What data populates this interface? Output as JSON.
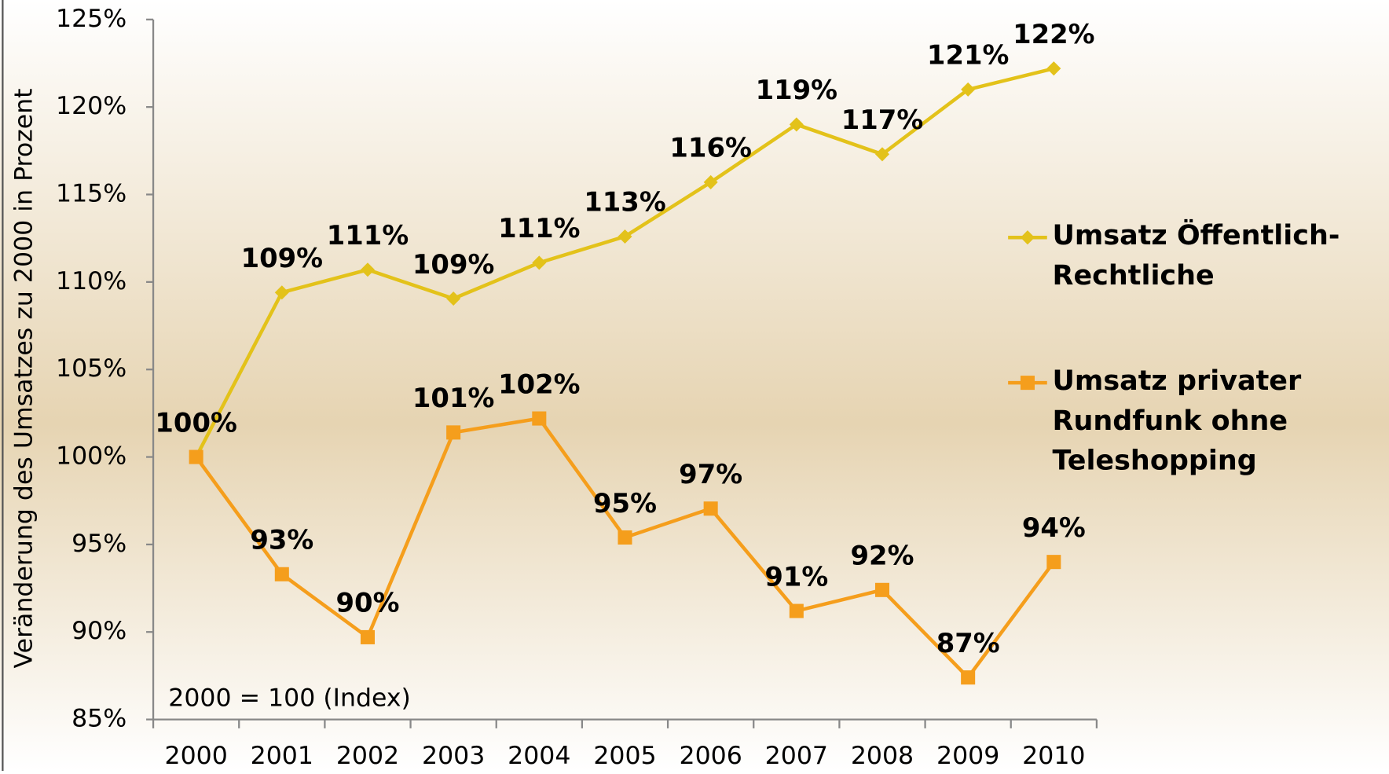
{
  "chart_data": {
    "type": "line",
    "y_axis_label": "Veränderung des Umsatzes zu 2000 in Prozent",
    "annotation": "2000 = 100 (Index)",
    "categories": [
      "2000",
      "2001",
      "2002",
      "2003",
      "2004",
      "2005",
      "2006",
      "2007",
      "2008",
      "2009",
      "2010"
    ],
    "series": [
      {
        "name": "Umsatz Öffentlich-Rechtliche",
        "color": "#e3c21a",
        "marker": "diamond",
        "values": [
          100,
          109.4,
          110.7,
          109.05,
          111.1,
          112.6,
          115.7,
          119.0,
          117.3,
          121.0,
          122.2
        ],
        "value_labels": [
          null,
          "109%",
          "111%",
          "109%",
          "111%",
          "113%",
          "116%",
          "119%",
          "117%",
          "121%",
          "122%"
        ]
      },
      {
        "name": "Umsatz privater Rundfunk ohne Teleshopping",
        "color": "#f59e1c",
        "marker": "square",
        "values": [
          100,
          93.3,
          89.7,
          101.4,
          102.2,
          95.4,
          97.05,
          91.2,
          92.4,
          87.4,
          94.0
        ],
        "value_labels": [
          "100%",
          "93%",
          "90%",
          "101%",
          "102%",
          "95%",
          "97%",
          "91%",
          "92%",
          "87%",
          "94%"
        ]
      }
    ],
    "ylim": [
      85,
      125
    ],
    "yticks": [
      {
        "value": 85,
        "label": "85%"
      },
      {
        "value": 90,
        "label": "90%"
      },
      {
        "value": 95,
        "label": "95%"
      },
      {
        "value": 100,
        "label": "100%"
      },
      {
        "value": 105,
        "label": "105%"
      },
      {
        "value": 110,
        "label": "110%"
      },
      {
        "value": 115,
        "label": "115%"
      },
      {
        "value": 120,
        "label": "120%"
      },
      {
        "value": 125,
        "label": "125%"
      }
    ],
    "grid": false,
    "legend": "right"
  }
}
